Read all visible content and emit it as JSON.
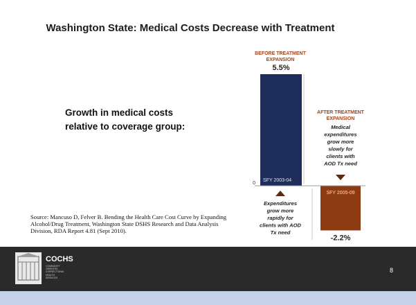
{
  "slide": {
    "title": "Washington State: Medical Costs Decrease with Treatment",
    "lead_text": "Growth in medical costs relative to coverage group:",
    "source": "Source: Mancuso D, Felver B. Bending the Health Care Cost Curve by Expanding Alcohol/Drug Treatment, Washington State DSHS Research and Data Analysis Division, RDA Report 4.81 (Sept 2010).",
    "page_number": "8",
    "logo": {
      "name": "COCHS",
      "subtitle": [
        "COMMUNITY",
        "ORIENTED",
        "CORRECTIONAL",
        "HEALTH",
        "SERVICES"
      ]
    }
  },
  "chart_data": {
    "type": "bar",
    "categories": [
      "SFY 2003-04",
      "SFY 2005-09"
    ],
    "values": [
      5.5,
      -2.2
    ],
    "value_labels": [
      "5.5%",
      "-2.2%"
    ],
    "ylim": [
      -2.2,
      5.5
    ],
    "zero_label": "0",
    "colors": [
      "#1f2d5b",
      "#8c3b12"
    ],
    "accent_color": "#a5431a",
    "annotations": {
      "before_header": [
        "BEFORE TREATMENT",
        "EXPANSION"
      ],
      "after_header": [
        "AFTER TREATMENT",
        "EXPANSION"
      ],
      "after_note": [
        "Medical",
        "expenditures",
        "grow more",
        "slowly for",
        "clients with",
        "AOD Tx need"
      ],
      "before_note": [
        "Expenditures",
        "grow more",
        "rapidly for",
        "clients with AOD",
        "Tx need"
      ]
    }
  }
}
